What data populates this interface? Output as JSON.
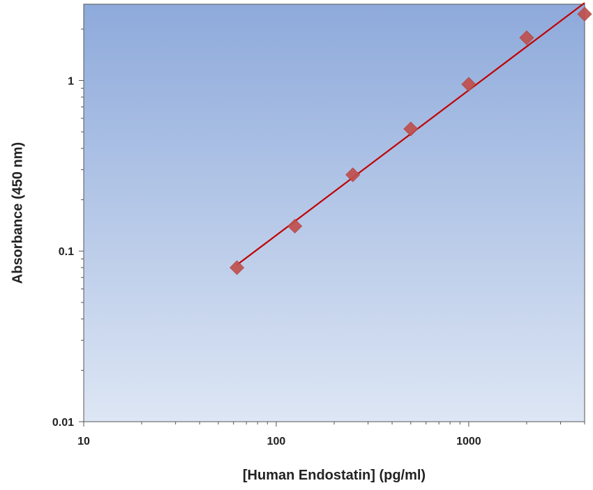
{
  "chart_data": {
    "type": "scatter",
    "title": "",
    "xlabel": "[Human Endostatin] (pg/ml)",
    "ylabel": "Absorbance (450 nm)",
    "xscale": "log",
    "yscale": "log",
    "xlim": [
      10,
      4000
    ],
    "ylim": [
      0.01,
      2.8
    ],
    "x_ticks": [
      10,
      100,
      1000
    ],
    "x_tick_labels": [
      "10",
      "100",
      "1000"
    ],
    "y_ticks": [
      0.01,
      0.1,
      1
    ],
    "y_tick_labels": [
      "0.01",
      "0.1",
      "1"
    ],
    "grid": false,
    "legend": "none",
    "series": [
      {
        "x": [
          62.5,
          125,
          250,
          500,
          1000,
          2000,
          4000
        ],
        "y": [
          0.08,
          0.14,
          0.28,
          0.52,
          0.95,
          1.78,
          2.45
        ]
      }
    ],
    "fit_line": {
      "x": [
        62.5,
        4000
      ],
      "y": [
        0.083,
        2.85
      ]
    },
    "colors": {
      "marker": "#c0504d",
      "line": "#c00000",
      "plot_bg_top": "#8eaadb",
      "plot_bg_bottom": "#dde6f4",
      "axis": "#555555"
    }
  }
}
